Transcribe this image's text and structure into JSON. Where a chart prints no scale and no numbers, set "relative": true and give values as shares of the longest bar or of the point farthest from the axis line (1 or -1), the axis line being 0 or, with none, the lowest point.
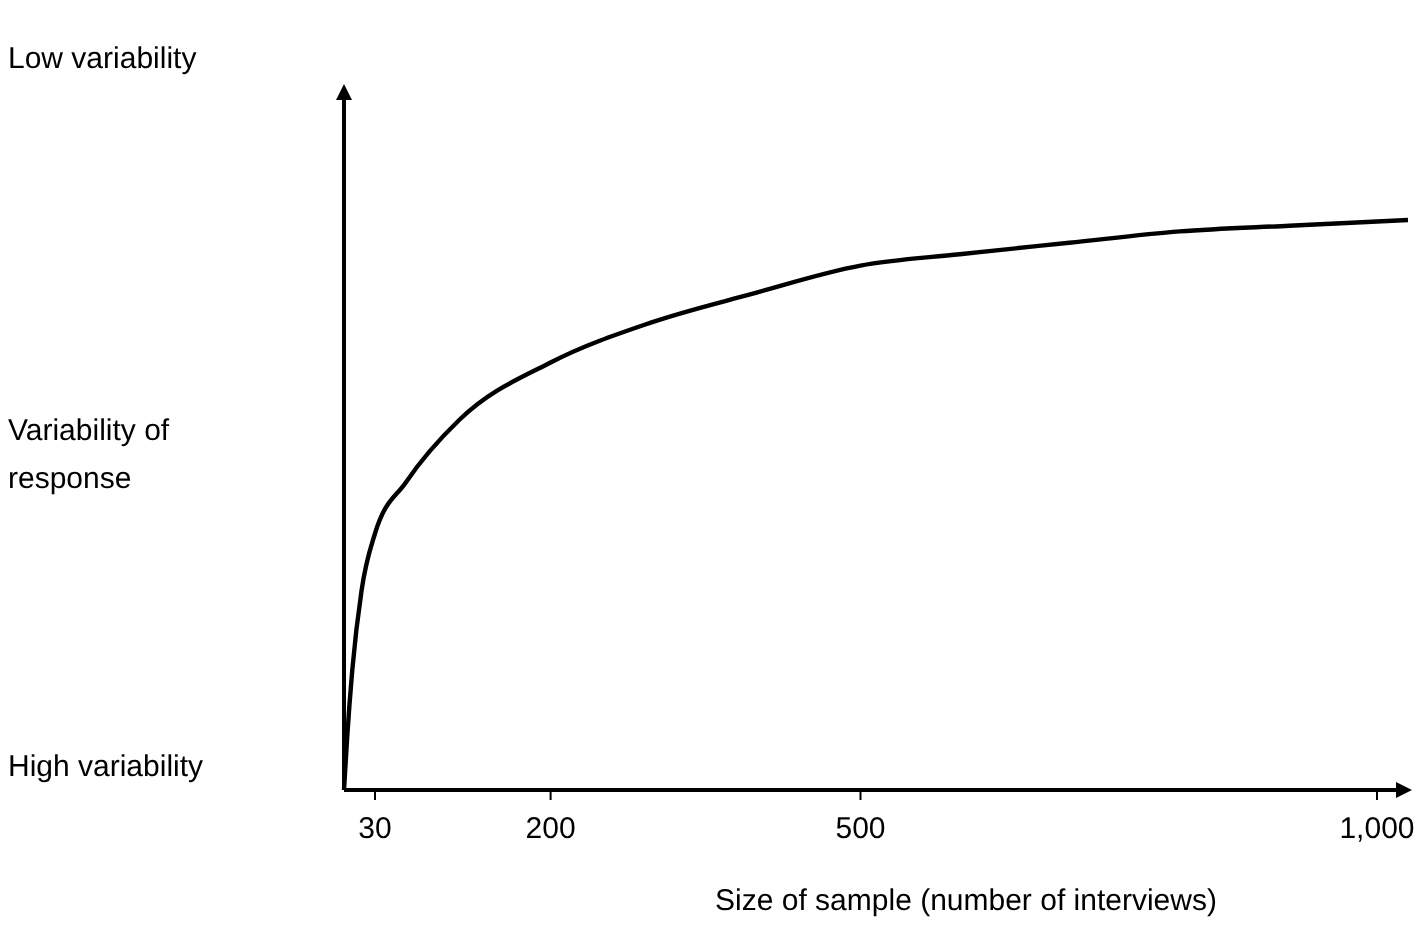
{
  "chart_data": {
    "type": "line",
    "relative": true,
    "xlabel": "Size of sample (number of interviews)",
    "annotations": [
      "Low variability",
      "Variability of response",
      "High variability"
    ],
    "x": [
      0,
      3,
      8,
      17,
      30,
      60,
      112,
      200,
      297,
      394,
      500,
      596,
      702,
      809,
      915,
      1030
    ],
    "series": [
      {
        "color": "#000000",
        "values": [
          0,
          0.09,
          0.21,
          0.35,
          0.45,
          0.54,
          0.65,
          0.75,
          0.82,
          0.87,
          0.92,
          0.94,
          0.96,
          0.98,
          0.99,
          1
        ]
      }
    ],
    "xlim": [
      0,
      1030
    ],
    "xticks": [
      30,
      200,
      500,
      {
        "value": 1000,
        "label": "1,000"
      }
    ],
    "marker": "none",
    "line_style": "solid"
  }
}
